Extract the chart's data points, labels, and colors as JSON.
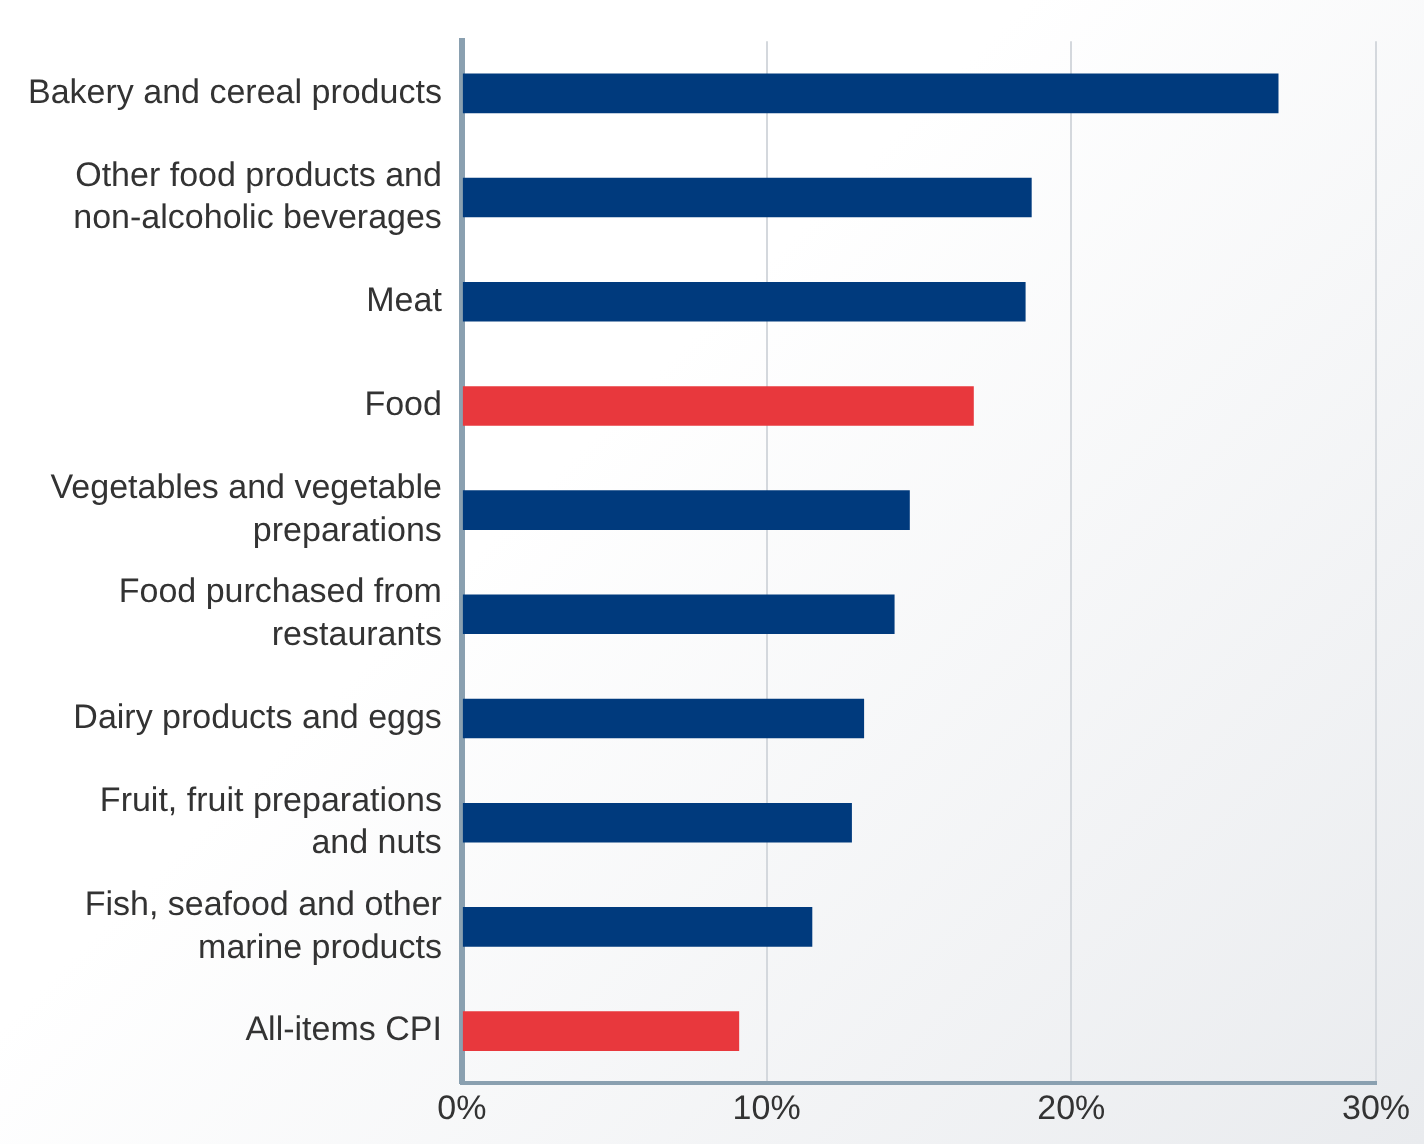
{
  "chart_data": {
    "type": "bar",
    "orientation": "horizontal",
    "categories": [
      "Bakery and cereal products",
      "Other food products and non-alcoholic beverages",
      "Meat",
      "Food",
      "Vegetables and vegetable preparations",
      "Food purchased from restaurants",
      "Dairy products and eggs",
      "Fruit, fruit preparations and nuts",
      "Fish, seafood and other marine products",
      "All-items CPI"
    ],
    "values": [
      26.8,
      18.7,
      18.5,
      16.8,
      14.7,
      14.2,
      13.2,
      12.8,
      11.5,
      9.1
    ],
    "colors": [
      "#003a7d",
      "#003a7d",
      "#003a7d",
      "#e8383d",
      "#003a7d",
      "#003a7d",
      "#003a7d",
      "#003a7d",
      "#003a7d",
      "#e8383d"
    ],
    "xlim": [
      0,
      30
    ],
    "xticks": [
      {
        "value": 0,
        "label": "0%"
      },
      {
        "value": 10,
        "label": "10%"
      },
      {
        "value": 20,
        "label": "20%"
      },
      {
        "value": 30,
        "label": "30%"
      }
    ],
    "grid": "x",
    "legend": false
  }
}
